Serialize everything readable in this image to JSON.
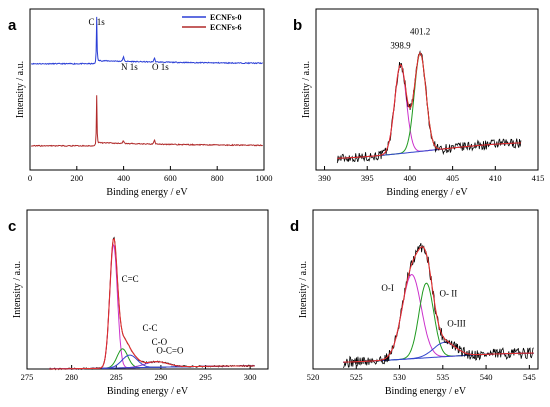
{
  "chart_data": [
    {
      "panel": "a",
      "type": "line",
      "xlabel": "Binding energy / eV",
      "ylabel": "Intensity / a.u.",
      "xlim": [
        0,
        1000
      ],
      "xticks": [
        0,
        200,
        400,
        600,
        800,
        1000
      ],
      "legend_position": "top-right",
      "series": [
        {
          "name": "ECNFs-0",
          "color": "#2b3fd6",
          "baseline": 0.66,
          "noise": 0.006,
          "peaks": [
            {
              "x": 284.8,
              "height": 0.31,
              "width": 1.6
            },
            {
              "x": 399.0,
              "height": 0.04,
              "width": 2.5
            },
            {
              "x": 531.5,
              "height": 0.035,
              "width": 2.5
            }
          ]
        },
        {
          "name": "ECNFs-6",
          "color": "#b02a2a",
          "baseline": 0.15,
          "noise": 0.006,
          "peaks": [
            {
              "x": 284.8,
              "height": 0.33,
              "width": 1.6
            },
            {
              "x": 399.0,
              "height": 0.025,
              "width": 2.5
            },
            {
              "x": 531.5,
              "height": 0.035,
              "width": 2.5
            }
          ]
        }
      ],
      "annotations": [
        {
          "text": "C 1s",
          "x": 284.8
        },
        {
          "text": "N 1s",
          "x": 399.0
        },
        {
          "text": "O 1s",
          "x": 531.5
        }
      ]
    },
    {
      "panel": "b",
      "type": "line",
      "xlabel": "Binding energy / eV",
      "ylabel": "Intensity / a.u.",
      "xlim": [
        389,
        415
      ],
      "xticks": [
        390,
        395,
        400,
        405,
        410,
        415
      ],
      "background": {
        "left": 0.07,
        "right": 0.17
      },
      "components": [
        {
          "label": "398.9",
          "center": 398.9,
          "height": 0.55,
          "fwhm": 1.6,
          "color": "#cc33cc"
        },
        {
          "label": "401.2",
          "center": 401.2,
          "height": 0.61,
          "fwhm": 1.6,
          "color": "#1f9a1f"
        }
      ],
      "envelope_color": "#e03030",
      "raw_color": "#000000",
      "raw_x_range": [
        391.5,
        413.0
      ],
      "background_color": "#3344cc"
    },
    {
      "panel": "c",
      "type": "line",
      "xlabel": "Binding energy / eV",
      "ylabel": "Intensity / a.u.",
      "xlim": [
        275,
        302
      ],
      "xticks": [
        275,
        280,
        285,
        290,
        295,
        300
      ],
      "background": {
        "left": 0.0,
        "right": 0.02
      },
      "components": [
        {
          "label": "C=C",
          "center": 284.7,
          "height": 0.78,
          "fwhm": 1.0,
          "color": "#cc33cc"
        },
        {
          "label": "C-C",
          "center": 285.7,
          "height": 0.12,
          "fwhm": 1.4,
          "color": "#1f9a1f"
        },
        {
          "label": "C-O",
          "center": 286.5,
          "height": 0.08,
          "fwhm": 2.0,
          "color": "#3344cc"
        },
        {
          "label": "O-C=O",
          "center": 289.5,
          "height": 0.035,
          "fwhm": 3.0,
          "color": "#8833cc"
        }
      ],
      "envelope_color": "#e03030",
      "raw_color": "#000000",
      "raw_x_range": [
        277.5,
        300.5
      ],
      "background_color": "#3344cc"
    },
    {
      "panel": "d",
      "type": "line",
      "xlabel": "Binding energy / eV",
      "ylabel": "Intensity / a.u.",
      "xlim": [
        520,
        546
      ],
      "xticks": [
        520,
        525,
        530,
        535,
        540,
        545
      ],
      "background": {
        "left": 0.04,
        "right": 0.1
      },
      "components": [
        {
          "label": "O-I",
          "center": 531.4,
          "height": 0.53,
          "fwhm": 2.6,
          "color": "#cc33cc"
        },
        {
          "label": "O- II",
          "center": 533.1,
          "height": 0.47,
          "fwhm": 2.0,
          "color": "#1f9a1f"
        },
        {
          "label": "O-III",
          "center": 535.2,
          "height": 0.09,
          "fwhm": 3.0,
          "color": "#3344cc"
        }
      ],
      "envelope_color": "#e03030",
      "raw_color": "#000000",
      "raw_x_range": [
        523.5,
        545.5
      ],
      "background_color": "#3344cc"
    }
  ]
}
